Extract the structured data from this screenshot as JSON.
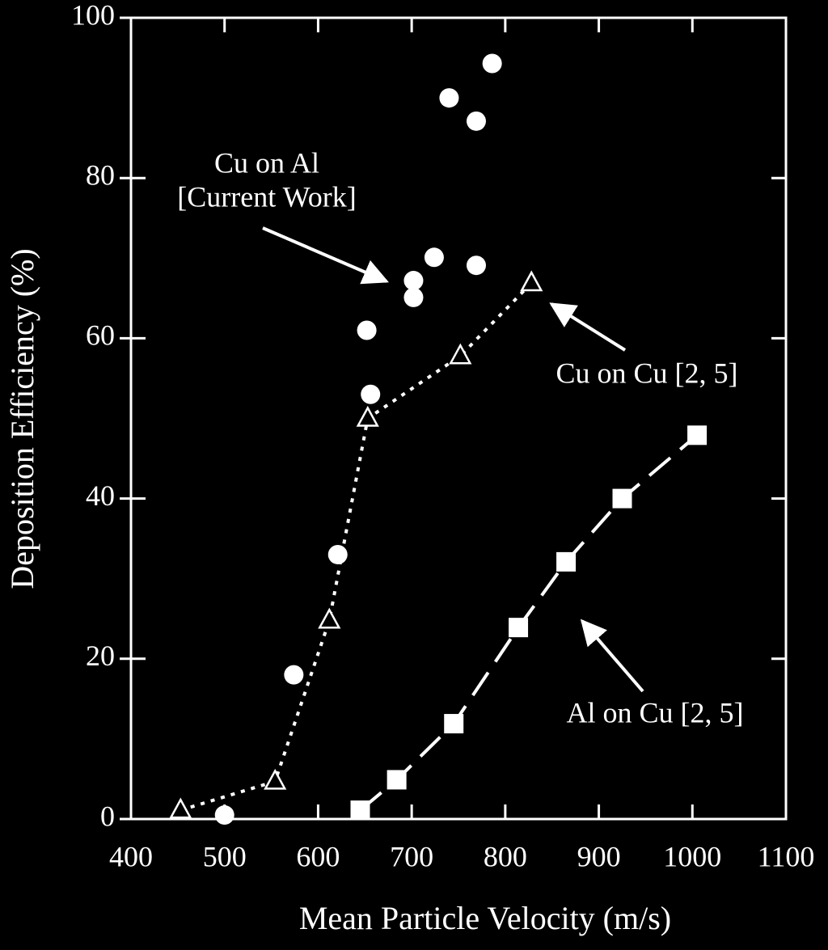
{
  "chart_data": {
    "type": "scatter",
    "x_label": "Mean Particle Velocity (m/s)",
    "y_label": "Deposition Efficiency (%)",
    "xlim": [
      400,
      1100
    ],
    "ylim": [
      0,
      100
    ],
    "xticks": [
      400,
      500,
      600,
      700,
      800,
      900,
      1000,
      1100
    ],
    "yticks": [
      0,
      20,
      40,
      60,
      80,
      100
    ],
    "background": "#000000",
    "series": [
      {
        "color": "#ffffff",
        "marker": "circle",
        "line": "none",
        "x": [
          500,
          574,
          621,
          652,
          656,
          702,
          702,
          724,
          740,
          769,
          769,
          786
        ],
        "values": [
          0.5,
          18,
          33,
          61,
          53,
          67.2,
          65.1,
          70.1,
          90,
          87.1,
          69.1,
          94.3
        ]
      },
      {
        "color": "#ffffff",
        "marker": "open-triangle",
        "line": "dotted",
        "x": [
          453,
          554,
          612,
          653,
          752,
          828
        ],
        "values": [
          1.1,
          4.7,
          24.8,
          50,
          57.8,
          66.9
        ]
      },
      {
        "color": "#ffffff",
        "marker": "square",
        "line": "dashed",
        "x": [
          645,
          684,
          745,
          814,
          865,
          925,
          1005
        ],
        "values": [
          1.1,
          4.9,
          11.9,
          23.9,
          32.1,
          40,
          47.9
        ]
      }
    ],
    "annotations": [
      {
        "lines": [
          "Cu on Al",
          "[Current Work]"
        ]
      },
      {
        "lines": [
          "Cu on Cu [2, 5]"
        ]
      },
      {
        "lines": [
          "Al on Cu [2, 5]"
        ]
      }
    ]
  }
}
